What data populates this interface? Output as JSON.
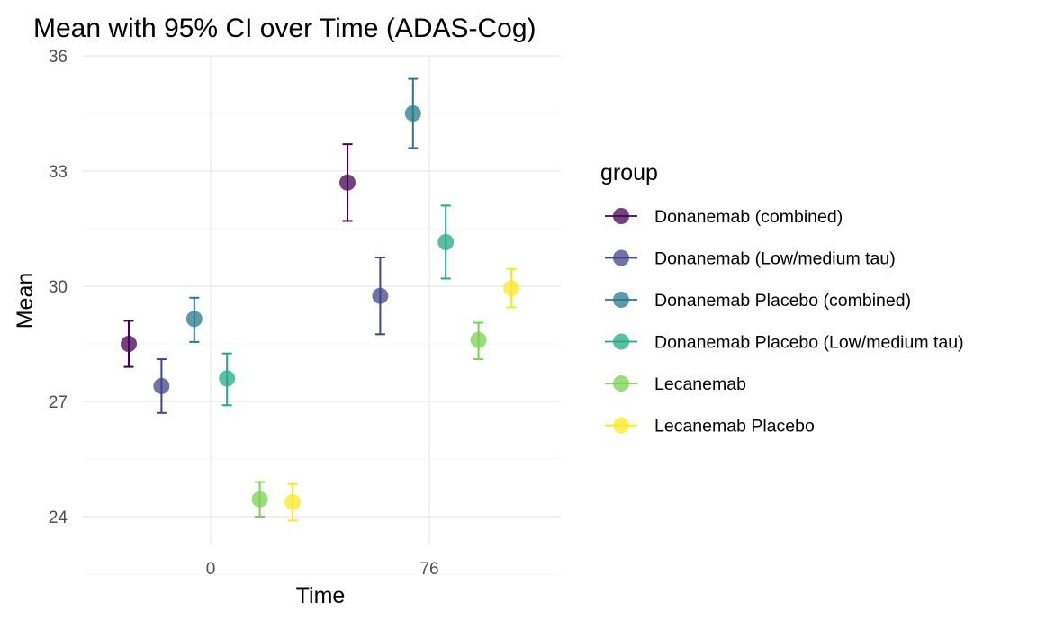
{
  "chart_data": {
    "type": "scatter",
    "title": "Mean with 95% CI over Time (ADAS-Cog)",
    "xlabel": "Time",
    "ylabel": "Mean",
    "legend_title": "group",
    "legend_position": "right",
    "grid": true,
    "ylim": [
      23.3,
      36.0
    ],
    "y_ticks": [
      24,
      27,
      30,
      33,
      36
    ],
    "x_ticks": [
      0,
      76
    ],
    "x_tick_labels": [
      "0",
      "76"
    ],
    "series": [
      {
        "name": "Donanemab (combined)",
        "color": "#440154",
        "points": [
          {
            "x": 0,
            "mean": 28.5,
            "lower": 27.9,
            "upper": 29.1
          },
          {
            "x": 76,
            "mean": 32.7,
            "lower": 31.7,
            "upper": 33.7
          }
        ]
      },
      {
        "name": "Donanemab (Low/medium tau)",
        "color": "#414487",
        "points": [
          {
            "x": 0,
            "mean": 27.4,
            "lower": 26.7,
            "upper": 28.1
          },
          {
            "x": 76,
            "mean": 29.75,
            "lower": 28.75,
            "upper": 30.75
          }
        ]
      },
      {
        "name": "Donanemab Placebo (combined)",
        "color": "#2A788E",
        "points": [
          {
            "x": 0,
            "mean": 29.15,
            "lower": 28.55,
            "upper": 29.7
          },
          {
            "x": 76,
            "mean": 34.5,
            "lower": 33.6,
            "upper": 35.4
          }
        ]
      },
      {
        "name": "Donanemab Placebo (Low/medium tau)",
        "color": "#22A884",
        "points": [
          {
            "x": 0,
            "mean": 27.6,
            "lower": 26.9,
            "upper": 28.25
          },
          {
            "x": 76,
            "mean": 31.15,
            "lower": 30.2,
            "upper": 32.1
          }
        ]
      },
      {
        "name": "Lecanemab",
        "color": "#7AD151",
        "points": [
          {
            "x": 0,
            "mean": 24.45,
            "lower": 24.0,
            "upper": 24.9
          },
          {
            "x": 76,
            "mean": 28.6,
            "lower": 28.1,
            "upper": 29.05
          }
        ]
      },
      {
        "name": "Lecanemab Placebo",
        "color": "#FDE725",
        "points": [
          {
            "x": 0,
            "mean": 24.38,
            "lower": 23.9,
            "upper": 24.85
          },
          {
            "x": 76,
            "mean": 29.95,
            "lower": 29.45,
            "upper": 30.45
          }
        ]
      }
    ]
  }
}
